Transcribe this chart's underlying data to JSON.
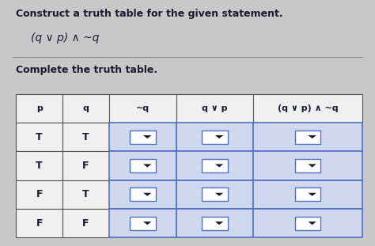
{
  "title1": "Construct a truth table for the given statement.",
  "title2": "(q ∨ p) ∧ ~q",
  "subtitle": "Complete the truth table.",
  "background_color": "#c8c8c8",
  "header": [
    "p",
    "q",
    "~q",
    "q ∨ p",
    "(q ∨ p) ∧ ~q"
  ],
  "rows": [
    [
      "T",
      "T",
      "",
      "",
      ""
    ],
    [
      "T",
      "F",
      "",
      "",
      ""
    ],
    [
      "F",
      "T",
      "",
      "",
      ""
    ],
    [
      "F",
      "F",
      "",
      "",
      ""
    ]
  ],
  "dropdown_cols": [
    2,
    3,
    4
  ],
  "dropdown_color_fill": "#d0d8f0",
  "dropdown_color_border": "#5070c0",
  "plain_col_border": "#555555",
  "cell_bg": "#f0f0f0",
  "text_color": "#1a1a2e",
  "font_size_title": 9,
  "font_size_header": 8,
  "font_size_cell": 9
}
